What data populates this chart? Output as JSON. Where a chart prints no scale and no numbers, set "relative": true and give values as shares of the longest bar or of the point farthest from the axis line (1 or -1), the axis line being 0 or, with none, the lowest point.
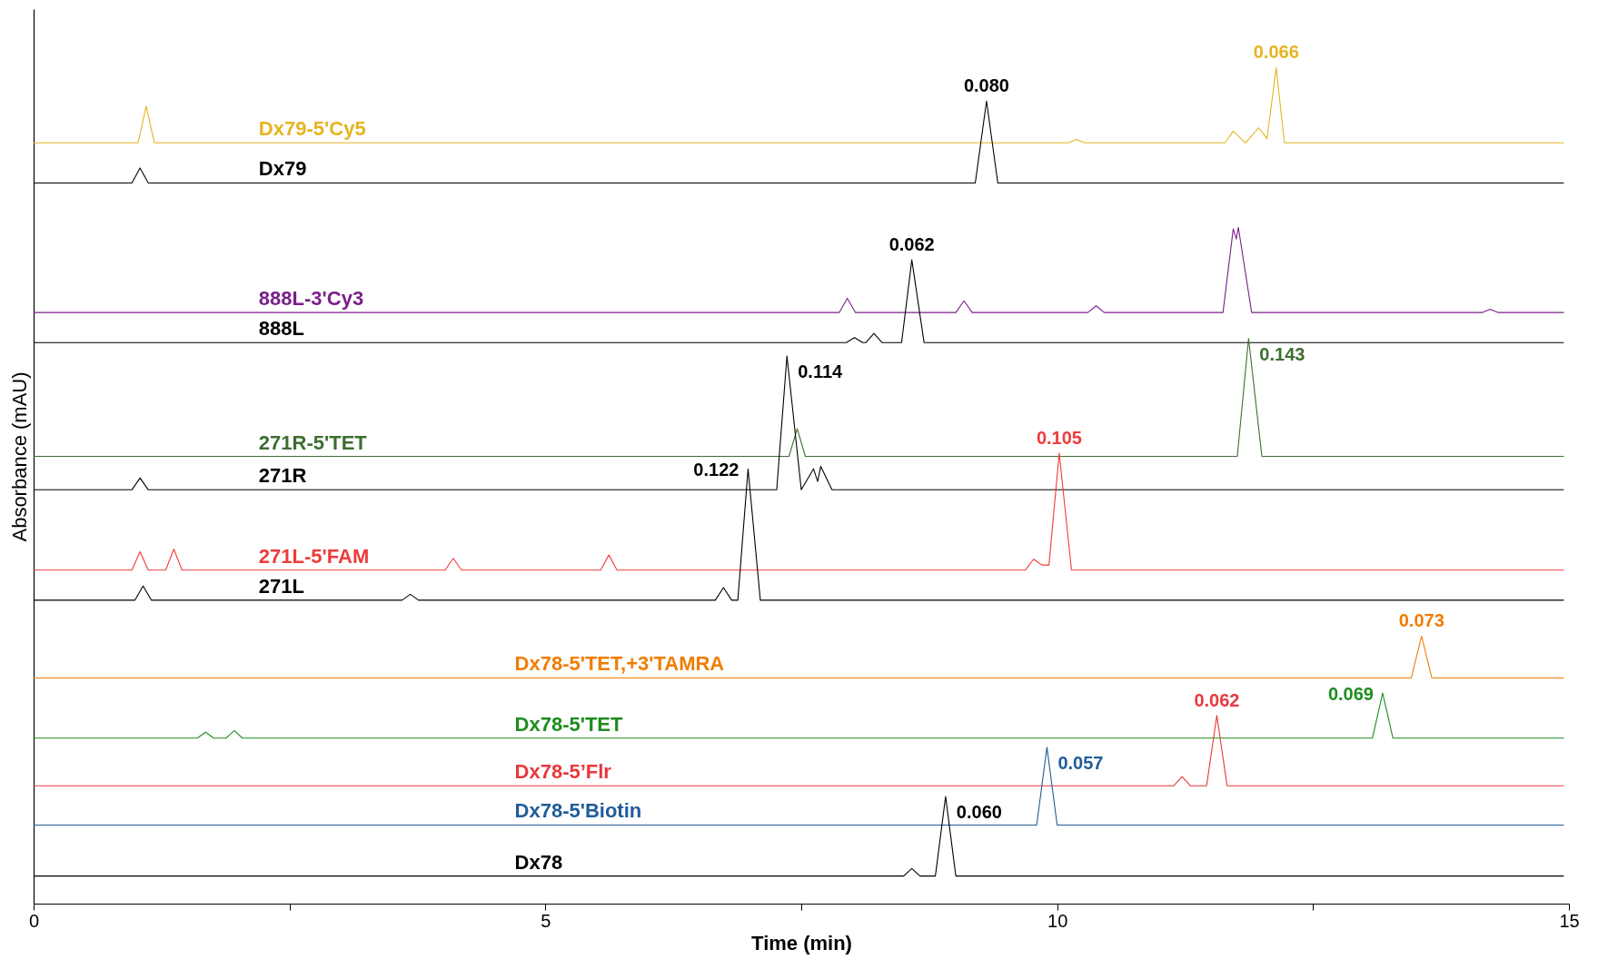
{
  "chart_data": {
    "type": "line",
    "relative": true,
    "xlabel": "Time (min)",
    "ylabel": "Absorbance (mAU)",
    "xlim": [
      0,
      15
    ],
    "xticks": [
      0,
      {
        "value": 2.5,
        "label": null
      },
      5,
      {
        "value": 7.5,
        "label": null
      },
      10,
      {
        "value": 12.5,
        "label": null
      },
      15
    ],
    "grid": false,
    "legend": false,
    "marker": "none",
    "line_style": "solid",
    "series": [
      {
        "name": "Dx79-5'Cy5",
        "color": "#e6b422",
        "x": [
          0,
          1.02,
          1.1,
          1.18,
          10.11,
          10.19,
          10.27,
          11.64,
          11.72,
          11.84,
          11.97,
          12.05,
          12.14,
          12.22,
          14.95
        ],
        "values": [
          0.91,
          0.91,
          0.954,
          0.91,
          0.91,
          0.914,
          0.91,
          0.91,
          0.924,
          0.91,
          0.928,
          0.915,
          1.0,
          0.91,
          0.91
        ]
      },
      {
        "name": "Dx79",
        "color": "#000000",
        "x": [
          0,
          0.96,
          1.04,
          1.12,
          9.2,
          9.31,
          9.42,
          14.95
        ],
        "values": [
          0.862,
          0.862,
          0.88,
          0.862,
          0.862,
          0.96,
          0.862,
          0.862
        ]
      },
      {
        "name": "888L-3'Cy3",
        "color": "#7b1f8a",
        "x": [
          0,
          7.87,
          7.95,
          8.03,
          9.01,
          9.09,
          9.17,
          10.3,
          10.38,
          10.46,
          11.62,
          11.72,
          11.75,
          11.77,
          11.9,
          14.15,
          14.23,
          14.31,
          14.95
        ],
        "values": [
          0.707,
          0.707,
          0.724,
          0.707,
          0.707,
          0.721,
          0.707,
          0.707,
          0.715,
          0.707,
          0.707,
          0.807,
          0.795,
          0.809,
          0.707,
          0.707,
          0.711,
          0.707,
          0.707
        ]
      },
      {
        "name": "888L",
        "color": "#000000",
        "x": [
          0,
          7.94,
          8.02,
          8.1,
          8.13,
          8.21,
          8.29,
          8.48,
          8.58,
          8.7,
          14.95
        ],
        "values": [
          0.671,
          0.671,
          0.677,
          0.671,
          0.671,
          0.682,
          0.671,
          0.671,
          0.77,
          0.671,
          0.671
        ]
      },
      {
        "name": "271R-5'TET",
        "color": "#3d6e30",
        "x": [
          0,
          7.38,
          7.46,
          7.54,
          11.76,
          11.87,
          12.0,
          14.95
        ],
        "values": [
          0.535,
          0.535,
          0.568,
          0.535,
          0.535,
          0.676,
          0.535,
          0.535
        ]
      },
      {
        "name": "271R",
        "color": "#000000",
        "x": [
          0,
          0.96,
          1.04,
          1.12,
          7.26,
          7.36,
          7.5,
          7.62,
          7.66,
          7.69,
          7.8,
          14.95
        ],
        "values": [
          0.495,
          0.495,
          0.509,
          0.495,
          0.495,
          0.655,
          0.495,
          0.52,
          0.505,
          0.523,
          0.495,
          0.495
        ]
      },
      {
        "name": "271L-5'FAM",
        "color": "#ef3b3b",
        "x": [
          0,
          0.96,
          1.04,
          1.12,
          1.29,
          1.37,
          1.45,
          4.02,
          4.1,
          4.18,
          5.54,
          5.62,
          5.7,
          9.69,
          9.77,
          9.85,
          9.92,
          10.02,
          10.14,
          14.95
        ],
        "values": [
          0.399,
          0.399,
          0.421,
          0.399,
          0.399,
          0.424,
          0.399,
          0.399,
          0.413,
          0.399,
          0.399,
          0.417,
          0.399,
          0.399,
          0.412,
          0.405,
          0.405,
          0.539,
          0.399,
          0.399
        ]
      },
      {
        "name": "271L",
        "color": "#000000",
        "x": [
          0,
          0.99,
          1.07,
          1.15,
          3.6,
          3.68,
          3.76,
          6.66,
          6.74,
          6.82,
          6.88,
          6.98,
          7.1,
          14.95
        ],
        "values": [
          0.363,
          0.363,
          0.38,
          0.363,
          0.363,
          0.37,
          0.363,
          0.363,
          0.378,
          0.363,
          0.363,
          0.52,
          0.363,
          0.363
        ]
      },
      {
        "name": "Dx78-5'TET,+3'TAMRA",
        "color": "#f07d00",
        "x": [
          0,
          13.46,
          13.56,
          13.66,
          14.95
        ],
        "values": [
          0.27,
          0.27,
          0.32,
          0.27,
          0.27
        ]
      },
      {
        "name": "Dx78-5'TET",
        "color": "#1e8c1e",
        "x": [
          0,
          1.6,
          1.68,
          1.76,
          1.88,
          1.96,
          2.04,
          13.08,
          13.18,
          13.28,
          14.95
        ],
        "values": [
          0.198,
          0.198,
          0.205,
          0.198,
          0.198,
          0.207,
          0.198,
          0.198,
          0.252,
          0.198,
          0.198
        ]
      },
      {
        "name": "Dx78-5’Flr",
        "color": "#e8383d",
        "x": [
          0,
          11.14,
          11.22,
          11.3,
          11.46,
          11.56,
          11.66,
          14.95
        ],
        "values": [
          0.141,
          0.141,
          0.152,
          0.141,
          0.141,
          0.225,
          0.141,
          0.141
        ]
      },
      {
        "name": "Dx78-5'Biotin",
        "color": "#1f5c99",
        "x": [
          0,
          9.8,
          9.9,
          10.0,
          14.95
        ],
        "values": [
          0.094,
          0.094,
          0.187,
          0.094,
          0.094
        ]
      },
      {
        "name": "Dx78",
        "color": "#000000",
        "x": [
          0,
          8.5,
          8.58,
          8.66,
          8.81,
          8.91,
          9.01,
          14.95
        ],
        "values": [
          0.033,
          0.033,
          0.042,
          0.033,
          0.033,
          0.128,
          0.033,
          0.033
        ]
      }
    ],
    "annotations": [
      {
        "text": "0.080",
        "x": 9.31,
        "y": 0.96
      },
      {
        "text": "0.066",
        "x": 12.14,
        "y": 1.0
      },
      {
        "text": "0.062",
        "x": 8.58,
        "y": 0.77
      },
      {
        "text": "0.114",
        "x": 7.36,
        "y": 0.655
      },
      {
        "text": "0.143",
        "x": 11.87,
        "y": 0.676
      },
      {
        "text": "0.105",
        "x": 10.02,
        "y": 0.539
      },
      {
        "text": "0.122",
        "x": 6.98,
        "y": 0.52
      },
      {
        "text": "0.073",
        "x": 13.56,
        "y": 0.32
      },
      {
        "text": "0.069",
        "x": 13.18,
        "y": 0.252
      },
      {
        "text": "0.062",
        "x": 11.56,
        "y": 0.225
      },
      {
        "text": "0.057",
        "x": 9.9,
        "y": 0.187
      },
      {
        "text": "0.060",
        "x": 8.91,
        "y": 0.128
      }
    ]
  }
}
